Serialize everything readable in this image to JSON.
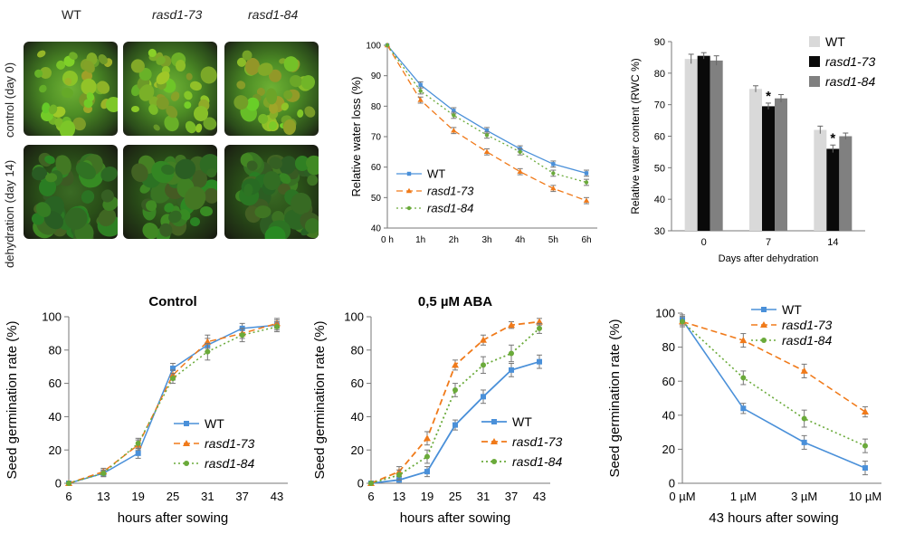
{
  "photos": {
    "columns": [
      "WT",
      "rasd1-73",
      "rasd1-84"
    ],
    "rows": [
      "control (day 0)",
      "dehydration (day 14)"
    ]
  },
  "colors": {
    "wt": "#4a90d9",
    "rasd1_73": "#f07a1a",
    "rasd1_84": "#6aaa3a",
    "bar_wt": "#d9d9d9",
    "bar_73": "#0a0a0a",
    "bar_84": "#808080"
  },
  "chart_data": [
    {
      "id": "water-loss",
      "type": "line",
      "title": "",
      "xlabel": "",
      "ylabel": "Relative water loss (%)",
      "categories": [
        "0 h",
        "1h",
        "2h",
        "3h",
        "4h",
        "5h",
        "6h"
      ],
      "ylim": [
        40,
        100
      ],
      "yticks": [
        40,
        50,
        60,
        70,
        80,
        90,
        100
      ],
      "legend": "bottom-left",
      "grid": false,
      "series": [
        {
          "name": "WT",
          "values": [
            100,
            87,
            78.5,
            72,
            66,
            61,
            58
          ],
          "errors": [
            0,
            1,
            1,
            1,
            1,
            1,
            1
          ]
        },
        {
          "name": "rasd1-73",
          "values": [
            100,
            82,
            72,
            65,
            58.5,
            53,
            49
          ],
          "errors": [
            0,
            1,
            1,
            1,
            1,
            1,
            1
          ]
        },
        {
          "name": "rasd1-84",
          "values": [
            100,
            85,
            77,
            70.5,
            65,
            58,
            55
          ],
          "errors": [
            0,
            1,
            1,
            1,
            1,
            1,
            1
          ]
        }
      ]
    },
    {
      "id": "rwc",
      "type": "bar",
      "title": "",
      "xlabel": "Days after dehydration",
      "ylabel": "Relative water content (RWC %)",
      "categories": [
        "0",
        "7",
        "14"
      ],
      "ylim": [
        30,
        90
      ],
      "yticks": [
        30,
        40,
        50,
        60,
        70,
        80,
        90
      ],
      "legend": "top-right",
      "grid": false,
      "series": [
        {
          "name": "WT",
          "values": [
            84.5,
            75,
            62
          ],
          "errors": [
            1.5,
            1,
            1.2
          ]
        },
        {
          "name": "rasd1-73",
          "values": [
            85.5,
            69.5,
            56
          ],
          "errors": [
            1,
            1,
            1.2
          ]
        },
        {
          "name": "rasd1-84",
          "values": [
            84,
            72,
            60
          ],
          "errors": [
            1.5,
            1.2,
            1
          ]
        }
      ],
      "annotations": [
        {
          "category": "7",
          "series": "rasd1-73",
          "text": "*"
        },
        {
          "category": "14",
          "series": "rasd1-73",
          "text": "*"
        }
      ]
    },
    {
      "id": "germ-control",
      "type": "line",
      "title": "Control",
      "xlabel": "hours after sowing",
      "ylabel": "Seed germination rate (%)",
      "categories": [
        "6",
        "13",
        "19",
        "25",
        "31",
        "37",
        "43"
      ],
      "ylim": [
        0,
        100
      ],
      "yticks": [
        0,
        20,
        40,
        60,
        80,
        100
      ],
      "legend": "bottom-right",
      "grid": false,
      "series": [
        {
          "name": "WT",
          "values": [
            0,
            6,
            18,
            69,
            83,
            93,
            95
          ],
          "errors": [
            0,
            2,
            3,
            3,
            4,
            3,
            3
          ]
        },
        {
          "name": "rasd1-73",
          "values": [
            0,
            7,
            23,
            65,
            85,
            90,
            96
          ],
          "errors": [
            0,
            2,
            3,
            3,
            4,
            3,
            3
          ]
        },
        {
          "name": "rasd1-84",
          "values": [
            0,
            6,
            24,
            63,
            79,
            89,
            94
          ],
          "errors": [
            0,
            2,
            3,
            3,
            5,
            4,
            3
          ]
        }
      ]
    },
    {
      "id": "germ-aba",
      "type": "line",
      "title": "0,5 µM ABA",
      "xlabel": "hours after sowing",
      "ylabel": "Seed germination rate (%)",
      "categories": [
        "6",
        "13",
        "19",
        "25",
        "31",
        "37",
        "43"
      ],
      "ylim": [
        0,
        100
      ],
      "yticks": [
        0,
        20,
        40,
        60,
        80,
        100
      ],
      "legend": "bottom-right",
      "grid": false,
      "series": [
        {
          "name": "WT",
          "values": [
            0,
            2,
            7,
            35,
            52,
            68,
            73
          ],
          "errors": [
            0,
            2,
            3,
            3,
            4,
            4,
            4
          ]
        },
        {
          "name": "rasd1-73",
          "values": [
            0,
            7,
            27,
            71,
            86,
            95,
            97
          ],
          "errors": [
            0,
            3,
            4,
            3,
            3,
            2,
            2
          ]
        },
        {
          "name": "rasd1-84",
          "values": [
            0,
            5,
            16,
            56,
            71,
            78,
            93
          ],
          "errors": [
            0,
            3,
            4,
            4,
            5,
            5,
            3
          ]
        }
      ]
    },
    {
      "id": "germ-dose",
      "type": "line",
      "title": "",
      "xlabel": "43 hours after sowing",
      "ylabel": "Seed germination rate (%)",
      "categories": [
        "0 µM",
        "1 µM",
        "3 µM",
        "10 µM"
      ],
      "ylim": [
        0,
        100
      ],
      "yticks": [
        0,
        20,
        40,
        60,
        80,
        100
      ],
      "legend": "top-right",
      "grid": false,
      "series": [
        {
          "name": "WT",
          "values": [
            96,
            44,
            24,
            9
          ],
          "errors": [
            3,
            3,
            4,
            4
          ]
        },
        {
          "name": "rasd1-73",
          "values": [
            95,
            84,
            66,
            42
          ],
          "errors": [
            3,
            4,
            4,
            3
          ]
        },
        {
          "name": "rasd1-84",
          "values": [
            95,
            62,
            38,
            22
          ],
          "errors": [
            3,
            4,
            5,
            4
          ]
        }
      ]
    }
  ]
}
